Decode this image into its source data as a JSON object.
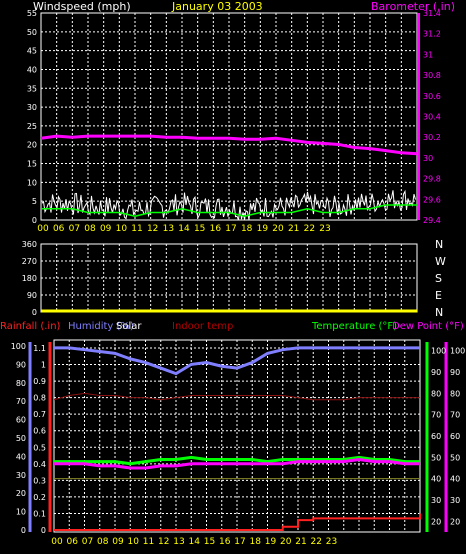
{
  "colors": {
    "background": "#000000",
    "grid": "#ffffff",
    "windspeed_title": "#ffffff",
    "date": "#ffff00",
    "barometer": "#ff00ff",
    "wind_ticks": "#ffffff",
    "hour_ticks": "#ffff00",
    "wind_avg": "#00ff00",
    "wind_gust": "#ffffff",
    "direction": "#ffff00",
    "rainfall": "#ff2020",
    "humidity": "#7f7fff",
    "solar": "#ffffff",
    "indoor": "#b00000",
    "temperature": "#00ff00",
    "dewpoint": "#ff00ff"
  },
  "wind_panel": {
    "title": "Windspeed (mph)",
    "date": "January 03 2003",
    "baro_title": "Barometer (.in)",
    "left_ticks": [
      "55",
      "50",
      "45",
      "40",
      "35",
      "30",
      "25",
      "20",
      "15",
      "10",
      "5",
      "0"
    ],
    "right_ticks": [
      "31.4",
      "31.2",
      "31",
      "30.8",
      "30.6",
      "30.4",
      "30.2",
      "30",
      "29.8",
      "29.6",
      "29.4"
    ]
  },
  "dir_panel": {
    "left_ticks": [
      "360",
      "270",
      "180",
      "90",
      "0"
    ],
    "right_labels": [
      "N",
      "W",
      "S",
      "E",
      "N"
    ]
  },
  "temp_panel": {
    "rain_title": "Rainfall (.in)",
    "humidity_title": "Humidity (%)",
    "solar_title": "Solar",
    "indoor_title": "Indoor temp",
    "temp_title": "Temperature (°F)",
    "dew_title": "Dew Point (°F)",
    "humidity_ticks": [
      "100",
      "90",
      "80",
      "70",
      "60",
      "50",
      "40",
      "30",
      "20",
      "10",
      "0"
    ],
    "rain_ticks": [
      "1.1",
      "1",
      "0.9",
      "0.8",
      "0.7",
      "0.6",
      "0.5",
      "0.4",
      "0.3",
      "0.2",
      "0.1",
      "0"
    ],
    "temp_ticks": [
      "100",
      "90",
      "80",
      "70",
      "60",
      "50",
      "40",
      "30",
      "20"
    ],
    "dew_ticks": [
      "100",
      "90",
      "80",
      "70",
      "60",
      "50",
      "40",
      "30",
      "20"
    ]
  },
  "hours": [
    "00",
    "06",
    "07",
    "08",
    "09",
    "10",
    "11",
    "12",
    "13",
    "14",
    "15",
    "16",
    "17",
    "18",
    "19",
    "20",
    "21",
    "22",
    "23"
  ],
  "chart_data": [
    {
      "type": "line",
      "title": "Windspeed (mph)",
      "subtitle": "January 03 2003",
      "x": [
        0,
        1,
        2,
        3,
        4,
        5,
        6,
        7,
        8,
        9,
        10,
        11,
        12,
        13,
        14,
        15,
        16,
        17,
        18,
        19,
        20,
        21,
        22,
        23,
        24
      ],
      "ylim": [
        0,
        55
      ],
      "y2lim": [
        29.4,
        31.4
      ],
      "series": [
        {
          "name": "Windspeed (mph)",
          "axis": "left",
          "values": [
            3,
            3,
            3,
            2,
            2,
            2,
            1,
            2,
            2,
            3,
            2,
            2,
            2,
            1,
            2,
            2,
            2,
            3,
            2,
            2,
            3,
            3,
            4,
            4,
            4
          ]
        },
        {
          "name": "Barometer (.in)",
          "axis": "right",
          "values": [
            30.19,
            30.21,
            30.2,
            30.21,
            30.21,
            30.21,
            30.21,
            30.21,
            30.2,
            30.2,
            30.19,
            30.19,
            30.19,
            30.18,
            30.18,
            30.19,
            30.17,
            30.15,
            30.14,
            30.13,
            30.1,
            30.09,
            30.07,
            30.05,
            30.04
          ]
        }
      ]
    },
    {
      "type": "line",
      "title": "",
      "ylim": [
        0,
        360
      ],
      "x": [
        0,
        24
      ],
      "series": [
        {
          "name": "",
          "values": [
            0,
            0
          ]
        }
      ]
    },
    {
      "type": "line",
      "ylim_humidity": [
        0,
        100
      ],
      "ylim_rain": [
        0,
        1.1
      ],
      "ylim_temp": [
        15,
        105
      ],
      "x": [
        0,
        1,
        2,
        3,
        4,
        5,
        6,
        7,
        8,
        9,
        10,
        11,
        12,
        13,
        14,
        15,
        16,
        17,
        18,
        19,
        20,
        21,
        22,
        23,
        24
      ],
      "series": [
        {
          "name": "Humidity (%)",
          "values": [
            99,
            99,
            98,
            97,
            96,
            93,
            91,
            88,
            85,
            90,
            91,
            89,
            88,
            91,
            96,
            98,
            99,
            99,
            99,
            99,
            99,
            99,
            99,
            99,
            99
          ]
        },
        {
          "name": "Temperature (°F)",
          "values": [
            48,
            48,
            48,
            48,
            48,
            47,
            48,
            49,
            49,
            50,
            49,
            49,
            49,
            49,
            48,
            49,
            49,
            49,
            49,
            49,
            50,
            49,
            49,
            48,
            48
          ]
        },
        {
          "name": "Dew Point (°F)",
          "values": [
            47,
            47,
            47,
            46,
            46,
            45,
            45,
            46,
            46,
            47,
            47,
            47,
            47,
            47,
            47,
            47,
            48,
            48,
            48,
            48,
            49,
            48,
            48,
            47,
            47
          ]
        },
        {
          "name": "Indoor temp",
          "values": [
            77,
            79,
            80,
            79,
            79,
            78,
            78,
            77,
            78,
            79,
            79,
            79,
            79,
            79,
            79,
            79,
            78,
            77,
            77,
            77,
            78,
            78,
            78,
            78,
            78
          ]
        },
        {
          "name": "Solar",
          "values": [
            40,
            40,
            40,
            40,
            40,
            40,
            40,
            40,
            40,
            40,
            40,
            40,
            40,
            40,
            40,
            40,
            40,
            40,
            40,
            40,
            40,
            40,
            40,
            40,
            40
          ]
        },
        {
          "name": "Rainfall (.in)",
          "values": [
            0,
            0,
            0,
            0,
            0,
            0,
            0,
            0,
            0,
            0,
            0,
            0,
            0,
            0,
            0,
            0.02,
            0.06,
            0.07,
            0.07,
            0.07,
            0.07,
            0.07,
            0.07,
            0.07,
            0.1
          ]
        }
      ]
    }
  ]
}
